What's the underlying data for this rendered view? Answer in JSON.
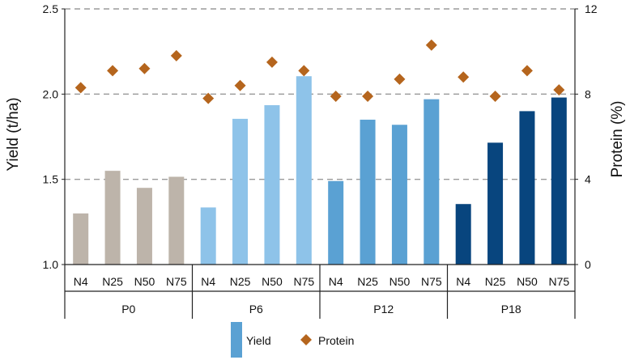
{
  "chart_data": {
    "type": "bar",
    "groups": [
      {
        "label": "P0",
        "color": "#bdb4aa"
      },
      {
        "label": "P6",
        "color": "#8ec3e9"
      },
      {
        "label": "P12",
        "color": "#5aa1d3"
      },
      {
        "label": "P18",
        "color": "#08457e"
      }
    ],
    "subcategories": [
      "N4",
      "N25",
      "N50",
      "N75"
    ],
    "series": [
      {
        "name": "Yield",
        "axis": "left",
        "mark": "bar",
        "values": [
          1.3,
          1.55,
          1.45,
          1.515,
          1.335,
          1.855,
          1.935,
          2.105,
          1.49,
          1.85,
          1.82,
          1.97,
          1.355,
          1.715,
          1.9,
          1.98
        ]
      },
      {
        "name": "Protein",
        "axis": "right",
        "mark": "diamond",
        "color": "#b5651d",
        "values": [
          8.3,
          9.1,
          9.2,
          9.8,
          7.8,
          8.4,
          9.5,
          9.1,
          7.9,
          7.9,
          8.7,
          10.3,
          8.8,
          7.9,
          9.1,
          8.2
        ]
      }
    ],
    "ylabel": "Yield (t/ha)",
    "ylim": [
      1.0,
      2.5
    ],
    "yticks": [
      "1.0",
      "1.5",
      "2.0",
      "2.5"
    ],
    "y2label": "Protein (%)",
    "y2lim": [
      0,
      12
    ],
    "y2ticks": [
      "0",
      "4",
      "8",
      "12"
    ],
    "grid": "horizontal-dashed",
    "legend": "bottom-center",
    "legend_swatch_color": "#5aa1d3"
  }
}
